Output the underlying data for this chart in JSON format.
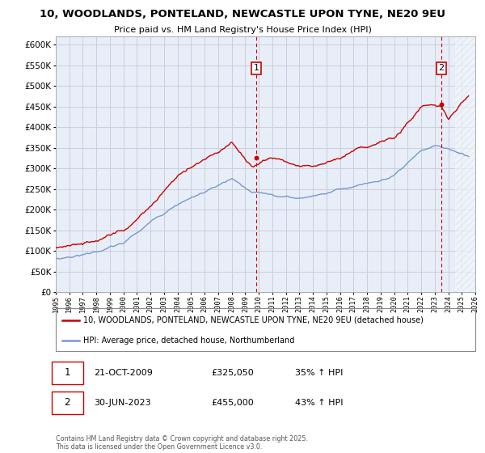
{
  "title1": "10, WOODLANDS, PONTELAND, NEWCASTLE UPON TYNE, NE20 9EU",
  "title2": "Price paid vs. HM Land Registry's House Price Index (HPI)",
  "xlim_start": 1995.0,
  "xlim_end": 2026.0,
  "ylim_min": 0,
  "ylim_max": 620000,
  "yticks": [
    0,
    50000,
    100000,
    150000,
    200000,
    250000,
    300000,
    350000,
    400000,
    450000,
    500000,
    550000,
    600000
  ],
  "red_color": "#cc0000",
  "blue_color": "#7799cc",
  "grid_color": "#ccccdd",
  "bg_color": "#e8eef8",
  "hatch_color": "#d0d8e8",
  "marker1_x": 2009.81,
  "marker1_y": 325050,
  "marker1_label": "1",
  "marker2_x": 2023.5,
  "marker2_y": 455000,
  "marker2_label": "2",
  "legend_red": "10, WOODLANDS, PONTELAND, NEWCASTLE UPON TYNE, NE20 9EU (detached house)",
  "legend_blue": "HPI: Average price, detached house, Northumberland",
  "note1_box": "1",
  "note1_date": "21-OCT-2009",
  "note1_price": "£325,050",
  "note1_hpi": "35% ↑ HPI",
  "note2_box": "2",
  "note2_date": "30-JUN-2023",
  "note2_price": "£455,000",
  "note2_hpi": "43% ↑ HPI",
  "footer": "Contains HM Land Registry data © Crown copyright and database right 2025.\nThis data is licensed under the Open Government Licence v3.0."
}
